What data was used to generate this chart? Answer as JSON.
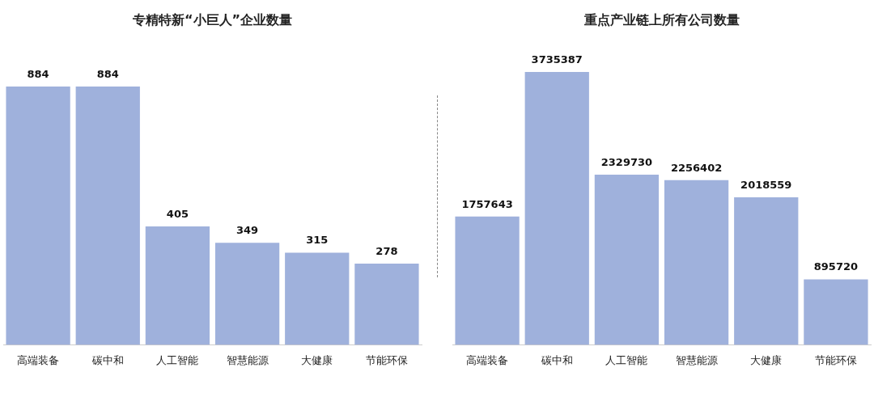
{
  "chart_data": [
    {
      "type": "bar",
      "title": "专精特新“小巨人”企业数量",
      "categories": [
        "高端装备",
        "碳中和",
        "人工智能",
        "智慧能源",
        "大健康",
        "节能环保"
      ],
      "values": [
        884,
        884,
        405,
        349,
        315,
        278
      ],
      "color": "#9fb1dc",
      "data_labels": true
    },
    {
      "type": "bar",
      "title": "重点产业链上所有公司数量",
      "categories": [
        "高端装备",
        "碳中和",
        "人工智能",
        "智慧能源",
        "大健康",
        "节能环保"
      ],
      "values": [
        1757643,
        3735387,
        2329730,
        2256402,
        2018559,
        895720
      ],
      "color": "#9fb1dc",
      "data_labels": true
    }
  ]
}
